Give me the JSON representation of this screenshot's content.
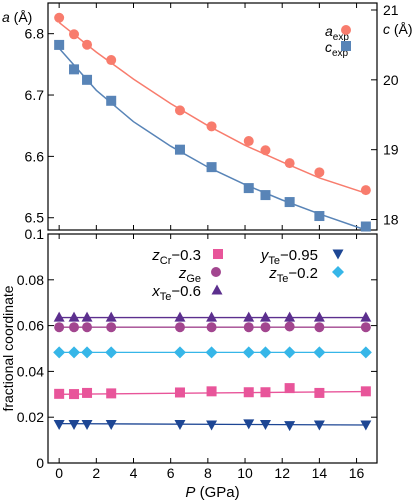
{
  "chart_data": [
    {
      "type": "scatter",
      "title": "",
      "xlabel": "P (GPa)",
      "xlim": [
        -0.6,
        17.1
      ],
      "x_ticks": [
        0,
        2,
        4,
        6,
        8,
        10,
        12,
        14,
        16
      ],
      "y_left": {
        "label": "a (Å)",
        "lim": [
          6.48,
          6.85
        ],
        "ticks": [
          6.5,
          6.6,
          6.7,
          6.8
        ]
      },
      "y_right": {
        "label": "c (Å)",
        "lim": [
          17.85,
          21.1
        ],
        "ticks": [
          18,
          19,
          20,
          21
        ]
      },
      "legend_position": "top-right",
      "series": [
        {
          "name": "a_exp",
          "label_main": "a",
          "label_sub": "exp",
          "axis": "left",
          "color": "#f87c6d",
          "marker": "circle",
          "points": [
            [
              0.0,
              6.826
            ],
            [
              0.8,
              6.799
            ],
            [
              1.5,
              6.782
            ],
            [
              2.8,
              6.757
            ],
            [
              6.5,
              6.675
            ],
            [
              8.2,
              6.649
            ],
            [
              10.2,
              6.625
            ],
            [
              11.1,
              6.61
            ],
            [
              12.4,
              6.589
            ],
            [
              14.0,
              6.574
            ],
            [
              16.5,
              6.545
            ]
          ],
          "fit": [
            [
              0.0,
              6.818
            ],
            [
              2.0,
              6.77
            ],
            [
              4.0,
              6.726
            ],
            [
              6.0,
              6.686
            ],
            [
              8.0,
              6.65
            ],
            [
              10.0,
              6.618
            ],
            [
              12.0,
              6.591
            ],
            [
              14.0,
              6.565
            ],
            [
              16.5,
              6.54
            ]
          ]
        },
        {
          "name": "c_exp",
          "label_main": "c",
          "label_sub": "exp",
          "axis": "right",
          "color": "#5884b7",
          "marker": "square",
          "points": [
            [
              0.0,
              20.5
            ],
            [
              0.8,
              20.15
            ],
            [
              1.5,
              20.0
            ],
            [
              2.8,
              19.7
            ],
            [
              6.5,
              19.0
            ],
            [
              8.2,
              18.75
            ],
            [
              10.2,
              18.45
            ],
            [
              11.1,
              18.35
            ],
            [
              12.4,
              18.25
            ],
            [
              14.0,
              18.05
            ],
            [
              16.5,
              17.9
            ]
          ],
          "fit": [
            [
              0.0,
              20.45
            ],
            [
              2.0,
              19.85
            ],
            [
              4.0,
              19.4
            ],
            [
              6.0,
              19.05
            ],
            [
              8.0,
              18.75
            ],
            [
              10.0,
              18.5
            ],
            [
              12.0,
              18.28
            ],
            [
              14.0,
              18.08
            ],
            [
              16.5,
              17.85
            ]
          ]
        }
      ]
    },
    {
      "type": "scatter",
      "title": "",
      "xlabel": "P (GPa)",
      "ylabel": "fractional coordinate",
      "xlim": [
        -0.6,
        17.1
      ],
      "ylim": [
        0.0,
        0.1
      ],
      "x_ticks": [
        0,
        2,
        4,
        6,
        8,
        10,
        12,
        14,
        16
      ],
      "x_tick_labels": [
        "0",
        "2",
        "4",
        "6",
        "8",
        "10",
        "12",
        "14",
        "16"
      ],
      "y_ticks": [
        0.0,
        0.02,
        0.04,
        0.06,
        0.08,
        0.1
      ],
      "y_tick_labels": [
        "0",
        "0.02",
        "0.04",
        "0.06",
        "0.08",
        "0.1"
      ],
      "x": [
        0.0,
        0.8,
        1.5,
        2.8,
        6.5,
        8.2,
        10.2,
        11.1,
        12.4,
        14.0,
        16.5
      ],
      "legend_position": "top",
      "series": [
        {
          "name": "z_Cr−0.3",
          "label_main": "z",
          "label_sub": "Cr",
          "label_suffix": "−0.3",
          "color": "#e8559a",
          "marker": "square",
          "values": [
            0.0302,
            0.0301,
            0.0306,
            0.0304,
            0.0308,
            0.0313,
            0.0309,
            0.0309,
            0.0327,
            0.0306,
            0.0313
          ],
          "fit": [
            0.03,
            0.0312
          ]
        },
        {
          "name": "z_Ge",
          "label_main": "z",
          "label_sub": "Ge",
          "label_suffix": "",
          "color": "#a2468f",
          "marker": "circle",
          "values": [
            0.0593,
            0.0593,
            0.0593,
            0.0593,
            0.0593,
            0.0593,
            0.0593,
            0.0593,
            0.0596,
            0.0593,
            0.0593
          ],
          "fit": [
            0.0593,
            0.0593
          ]
        },
        {
          "name": "x_Te−0.6",
          "label_main": "x",
          "label_sub": "Te",
          "label_suffix": "−0.6",
          "color": "#5c2f8e",
          "marker": "triangle-up",
          "values": [
            0.0637,
            0.0637,
            0.0637,
            0.0637,
            0.0637,
            0.0637,
            0.0637,
            0.0637,
            0.0637,
            0.0637,
            0.0637
          ],
          "fit": [
            0.0635,
            0.0635
          ]
        },
        {
          "name": "y_Te−0.95",
          "label_main": "y",
          "label_sub": "Te",
          "label_suffix": "−0.95",
          "color": "#1d4694",
          "marker": "triangle-down",
          "values": [
            0.0168,
            0.0168,
            0.0168,
            0.0168,
            0.0168,
            0.0166,
            0.0171,
            0.0168,
            0.0163,
            0.0166,
            0.0166
          ],
          "fit": [
            0.0172,
            0.0166
          ]
        },
        {
          "name": "z_Te−0.2",
          "label_main": "z",
          "label_sub": "Te",
          "label_suffix": "−0.2",
          "color": "#36b6e8",
          "marker": "diamond",
          "values": [
            0.0483,
            0.0483,
            0.0483,
            0.0483,
            0.0483,
            0.0483,
            0.0483,
            0.0483,
            0.0483,
            0.0483,
            0.0483
          ],
          "fit": [
            0.0483,
            0.0483
          ]
        }
      ]
    }
  ]
}
